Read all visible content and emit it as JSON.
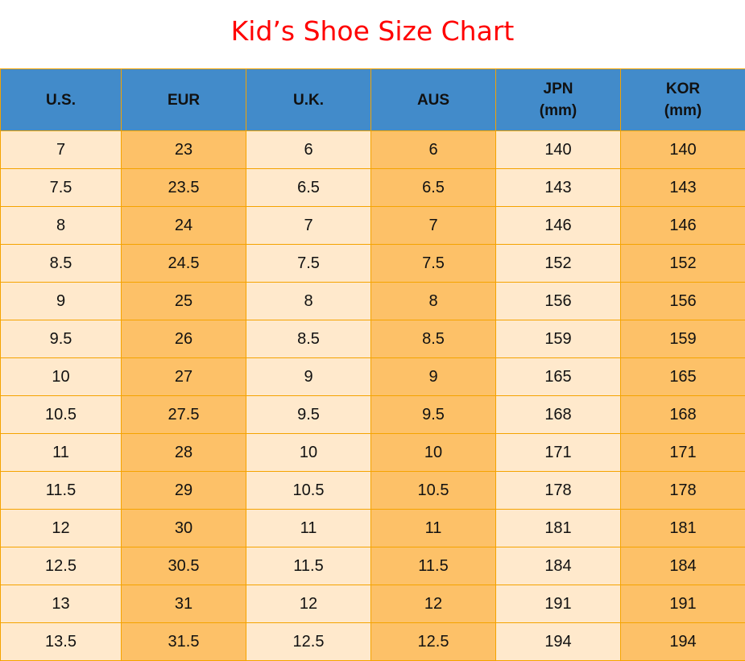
{
  "title": "Kid’s Shoe Size Chart",
  "colors": {
    "title": "#ff0000",
    "header_bg": "#428bca",
    "cell_light": "#ffe9cc",
    "cell_dark": "#fdc168",
    "border": "#f5a300"
  },
  "chart_data": {
    "type": "table",
    "title": "Kid’s Shoe Size Chart",
    "columns": [
      "U.S.",
      "EUR",
      "U.K.",
      "AUS",
      "JPN\n(mm)",
      "KOR\n(mm)"
    ],
    "rows": [
      [
        "7",
        "23",
        "6",
        "6",
        "140",
        "140"
      ],
      [
        "7.5",
        "23.5",
        "6.5",
        "6.5",
        "143",
        "143"
      ],
      [
        "8",
        "24",
        "7",
        "7",
        "146",
        "146"
      ],
      [
        "8.5",
        "24.5",
        "7.5",
        "7.5",
        "152",
        "152"
      ],
      [
        "9",
        "25",
        "8",
        "8",
        "156",
        "156"
      ],
      [
        "9.5",
        "26",
        "8.5",
        "8.5",
        "159",
        "159"
      ],
      [
        "10",
        "27",
        "9",
        "9",
        "165",
        "165"
      ],
      [
        "10.5",
        "27.5",
        "9.5",
        "9.5",
        "168",
        "168"
      ],
      [
        "11",
        "28",
        "10",
        "10",
        "171",
        "171"
      ],
      [
        "11.5",
        "29",
        "10.5",
        "10.5",
        "178",
        "178"
      ],
      [
        "12",
        "30",
        "11",
        "11",
        "181",
        "181"
      ],
      [
        "12.5",
        "30.5",
        "11.5",
        "11.5",
        "184",
        "184"
      ],
      [
        "13",
        "31",
        "12",
        "12",
        "191",
        "191"
      ],
      [
        "13.5",
        "31.5",
        "12.5",
        "12.5",
        "194",
        "194"
      ]
    ]
  }
}
